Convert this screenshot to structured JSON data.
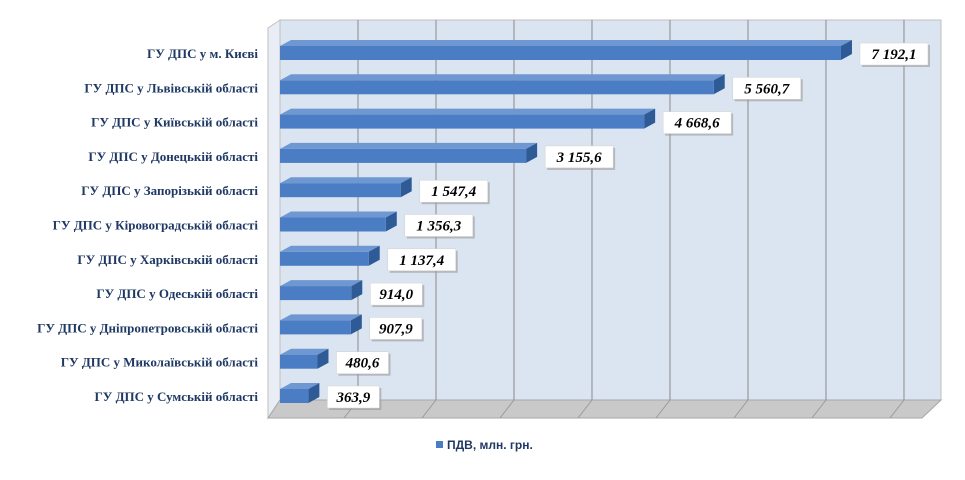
{
  "chart_data": {
    "type": "bar",
    "orientation": "horizontal",
    "three_d": true,
    "categories": [
      "ГУ ДПС у м. Києві",
      "ГУ ДПС у Львівській області",
      "ГУ ДПС у Київській області",
      "ГУ ДПС у Донецькій області",
      "ГУ ДПС у Запорізькій області",
      "ГУ ДПС у Кіровоградській області",
      "ГУ ДПС у Харківській області",
      "ГУ ДПС у Одеській області",
      "ГУ ДПС у Дніпропетровській області",
      "ГУ ДПС у Миколаївській області",
      "ГУ ДПС у Сумській області"
    ],
    "series": [
      {
        "name": "ПДВ, млн. грн.",
        "values": [
          7192.1,
          5560.7,
          4668.6,
          3155.6,
          1547.4,
          1356.3,
          1137.4,
          914.0,
          907.9,
          480.6,
          363.9
        ],
        "labels": [
          "7 192,1",
          "5 560,7",
          "4 668,6",
          "3 155,6",
          "1 547,4",
          "1 356,3",
          "1 137,4",
          "914,0",
          "907,9",
          "480,6",
          "363,9"
        ]
      }
    ],
    "xlim": [
      0,
      8000
    ],
    "grid": true,
    "legend_position": "bottom",
    "colors": {
      "bar_front": "#4a7dc4",
      "bar_top": "#6f97d2",
      "bar_side": "#2e5a96",
      "plot_background": "#dbe5f1",
      "grid": "#8a8a8a",
      "label_color": "#1f3864"
    }
  }
}
